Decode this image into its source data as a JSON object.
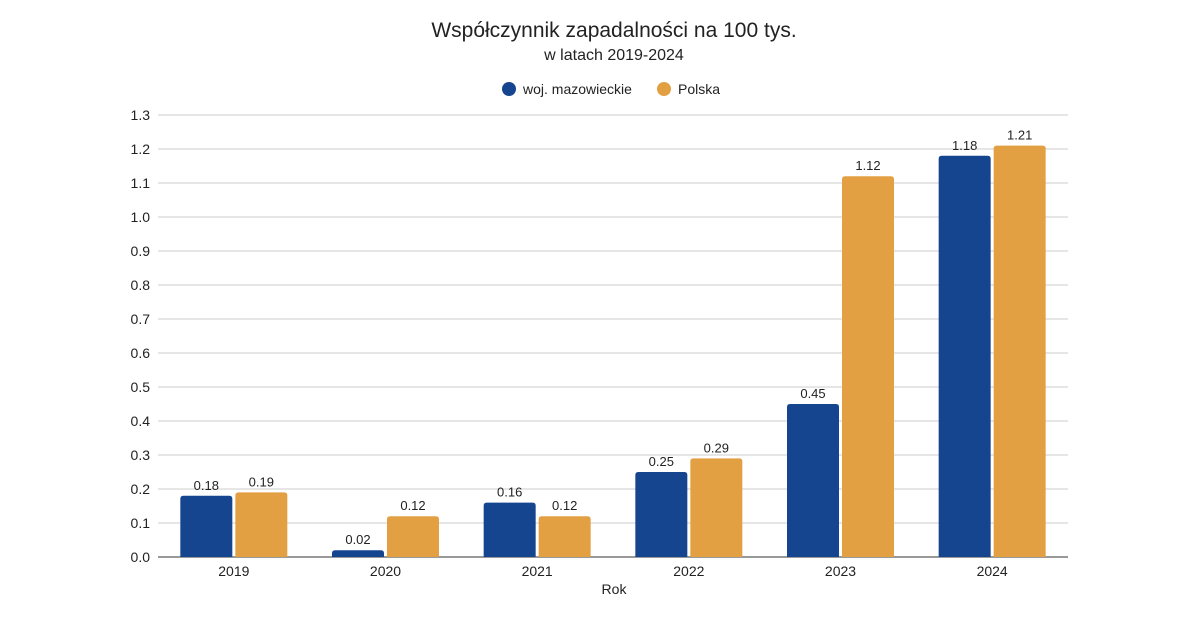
{
  "chart_data": {
    "type": "bar",
    "title": "Współczynnik zapadalności na 100 tys.",
    "subtitle": "w latach 2019-2024",
    "xlabel": "Rok",
    "ylabel": "",
    "categories": [
      "2019",
      "2020",
      "2021",
      "2022",
      "2023",
      "2024"
    ],
    "series": [
      {
        "name": "woj. mazowieckie",
        "color": "#15458f",
        "values": [
          0.18,
          0.02,
          0.16,
          0.25,
          0.45,
          1.18
        ],
        "labels": [
          "0.18",
          "0.02",
          "0.16",
          "0.25",
          "0.45",
          "1.18"
        ]
      },
      {
        "name": "Polska",
        "color": "#e3a043",
        "values": [
          0.19,
          0.12,
          0.12,
          0.29,
          1.12,
          1.21
        ],
        "labels": [
          "0.19",
          "0.12",
          "0.12",
          "0.29",
          "1.12",
          "1.21"
        ]
      }
    ],
    "ylim": [
      0,
      1.3
    ],
    "yticks": [
      "0.0",
      "0.1",
      "0.2",
      "0.3",
      "0.4",
      "0.5",
      "0.6",
      "0.7",
      "0.8",
      "0.9",
      "1.0",
      "1.1",
      "1.2",
      "1.3"
    ],
    "grid": true,
    "legend_position": "top-center"
  }
}
